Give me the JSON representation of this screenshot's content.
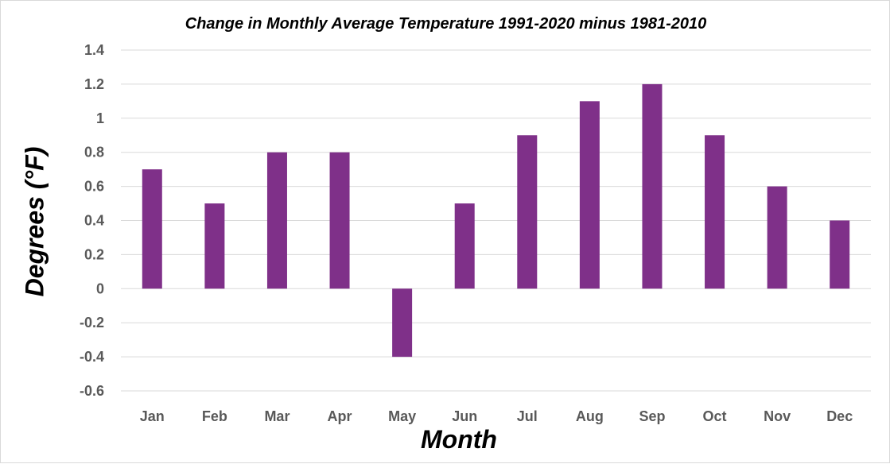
{
  "chart_data": {
    "type": "bar",
    "title": "Change in Monthly Average Temperature 1991-2020 minus 1981-2010",
    "xlabel": "Month",
    "ylabel": "Degrees (°F)",
    "categories": [
      "Jan",
      "Feb",
      "Mar",
      "Apr",
      "May",
      "Jun",
      "Jul",
      "Aug",
      "Sep",
      "Oct",
      "Nov",
      "Dec"
    ],
    "values": [
      0.7,
      0.5,
      0.8,
      0.8,
      -0.4,
      0.5,
      0.9,
      1.1,
      1.2,
      0.9,
      0.6,
      0.4
    ],
    "ylim": [
      -0.6,
      1.4
    ],
    "yticks": [
      "1.4",
      "1.2",
      "1",
      "0.8",
      "0.6",
      "0.4",
      "0.2",
      "0",
      "-0.2",
      "-0.4",
      "-0.6"
    ],
    "grid": true,
    "legend": "none",
    "colors": {
      "bar": "#7f3089",
      "grid": "#d9d9d9",
      "tick_text": "#595959"
    }
  }
}
